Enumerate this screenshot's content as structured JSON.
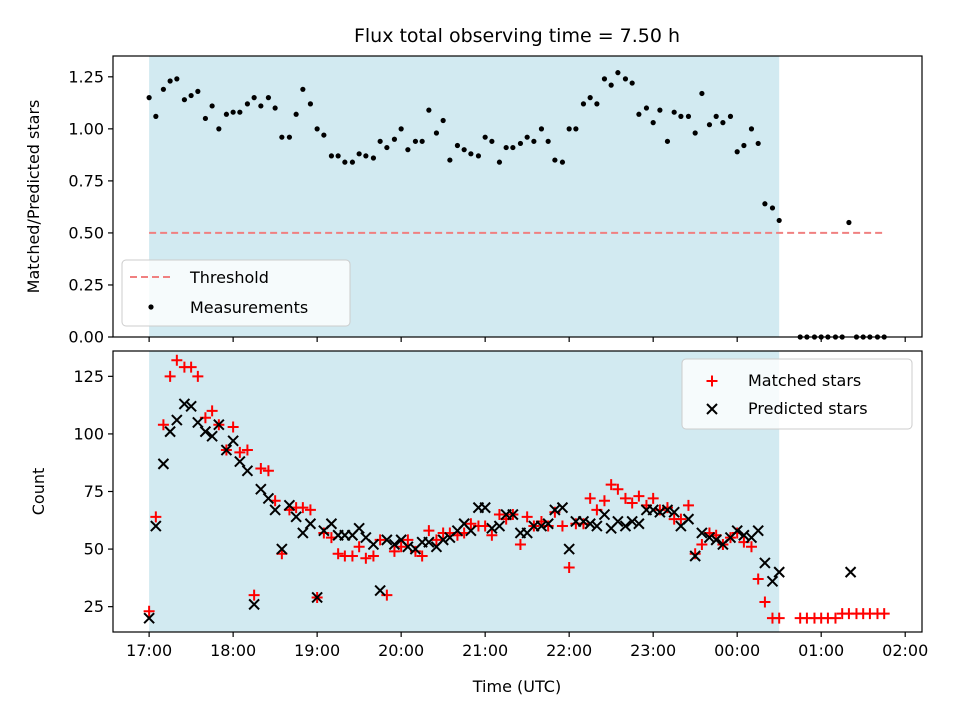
{
  "chart_data": {
    "type": "scatter",
    "title": "Flux total observing time = 7.50 h",
    "xlabel": "Time (UTC)",
    "x_tick_labels": [
      "17:00",
      "18:00",
      "19:00",
      "20:00",
      "21:00",
      "22:00",
      "23:00",
      "00:00",
      "01:00",
      "02:00"
    ],
    "x_unit": "hours since 17:00 UTC",
    "x_ticks": [
      0,
      1,
      2,
      3,
      4,
      5,
      6,
      7,
      8,
      9
    ],
    "xlim": [
      -0.43,
      9.2
    ],
    "observing_window": [
      0,
      7.5
    ],
    "colors": {
      "window": "#add8e6",
      "threshold": "#f08080",
      "measurements": "#000000",
      "matched": "#ff0000",
      "predicted": "#000000"
    },
    "panels": [
      {
        "ylabel": "Matched/Predicted stars",
        "ylim": [
          0,
          1.35
        ],
        "yticks": [
          0,
          0.25,
          0.5,
          0.75,
          1.0,
          1.25
        ],
        "y_tick_labels": [
          "0.00",
          "0.25",
          "0.50",
          "0.75",
          "1.00",
          "1.25"
        ],
        "legend_position": "lower-left",
        "threshold": {
          "name": "Threshold",
          "value": 0.5,
          "x_range": [
            0,
            8.75
          ]
        },
        "series": [
          {
            "name": "Measurements",
            "marker": "dot",
            "x": [
              0,
              0.08,
              0.17,
              0.25,
              0.33,
              0.42,
              0.5,
              0.58,
              0.67,
              0.75,
              0.83,
              0.92,
              1.0,
              1.08,
              1.17,
              1.25,
              1.33,
              1.42,
              1.5,
              1.58,
              1.67,
              1.75,
              1.83,
              1.92,
              2.0,
              2.08,
              2.17,
              2.25,
              2.33,
              2.42,
              2.5,
              2.58,
              2.67,
              2.75,
              2.83,
              2.92,
              3.0,
              3.08,
              3.17,
              3.25,
              3.33,
              3.42,
              3.5,
              3.58,
              3.67,
              3.75,
              3.83,
              3.92,
              4.0,
              4.08,
              4.17,
              4.25,
              4.33,
              4.42,
              4.5,
              4.58,
              4.67,
              4.75,
              4.83,
              4.92,
              5.0,
              5.08,
              5.17,
              5.25,
              5.33,
              5.42,
              5.5,
              5.58,
              5.67,
              5.75,
              5.83,
              5.92,
              6.0,
              6.08,
              6.17,
              6.25,
              6.33,
              6.42,
              6.5,
              6.58,
              6.67,
              6.75,
              6.83,
              6.92,
              7.0,
              7.08,
              7.17,
              7.25,
              7.33,
              7.42,
              7.5,
              7.75,
              7.83,
              7.92,
              8.0,
              8.08,
              8.17,
              8.25,
              8.33,
              8.42,
              8.5,
              8.58,
              8.67,
              8.75
            ],
            "y": [
              1.15,
              1.06,
              1.19,
              1.23,
              1.24,
              1.14,
              1.16,
              1.18,
              1.05,
              1.11,
              1.0,
              1.07,
              1.08,
              1.08,
              1.12,
              1.15,
              1.11,
              1.15,
              1.1,
              0.96,
              0.96,
              1.07,
              1.19,
              1.12,
              1.0,
              0.97,
              0.87,
              0.87,
              0.84,
              0.84,
              0.88,
              0.87,
              0.86,
              0.94,
              0.91,
              0.95,
              1.0,
              0.9,
              0.94,
              0.94,
              1.09,
              0.98,
              1.04,
              0.85,
              0.92,
              0.9,
              0.88,
              0.87,
              0.96,
              0.94,
              0.84,
              0.91,
              0.91,
              0.93,
              0.96,
              0.94,
              1.0,
              0.94,
              0.85,
              0.84,
              1.0,
              1.0,
              1.12,
              1.15,
              1.12,
              1.24,
              1.21,
              1.27,
              1.24,
              1.22,
              1.07,
              1.1,
              1.03,
              1.09,
              0.94,
              1.08,
              1.06,
              1.06,
              0.98,
              1.17,
              1.02,
              1.06,
              1.03,
              1.06,
              0.89,
              0.92,
              1.0,
              0.93,
              0.64,
              0.62,
              0.56,
              0,
              0,
              0,
              0,
              0,
              0,
              0,
              0.55,
              0,
              0,
              0,
              0,
              0
            ]
          }
        ]
      },
      {
        "ylabel": "Count",
        "ylim": [
          14,
          136
        ],
        "yticks": [
          25,
          50,
          75,
          100,
          125
        ],
        "y_tick_labels": [
          "25",
          "50",
          "75",
          "100",
          "125"
        ],
        "legend_position": "top-right",
        "series": [
          {
            "name": "Matched stars",
            "marker": "plus",
            "x": [
              0,
              0.08,
              0.17,
              0.25,
              0.33,
              0.42,
              0.5,
              0.58,
              0.67,
              0.75,
              0.83,
              0.92,
              1.0,
              1.08,
              1.17,
              1.25,
              1.33,
              1.42,
              1.5,
              1.58,
              1.67,
              1.75,
              1.83,
              1.92,
              2.0,
              2.08,
              2.17,
              2.25,
              2.33,
              2.42,
              2.5,
              2.58,
              2.67,
              2.75,
              2.83,
              2.92,
              3.0,
              3.08,
              3.17,
              3.25,
              3.33,
              3.42,
              3.5,
              3.58,
              3.67,
              3.75,
              3.83,
              3.92,
              4.0,
              4.08,
              4.17,
              4.25,
              4.33,
              4.42,
              4.5,
              4.58,
              4.67,
              4.75,
              4.83,
              4.92,
              5.0,
              5.08,
              5.17,
              5.25,
              5.33,
              5.42,
              5.5,
              5.58,
              5.67,
              5.75,
              5.83,
              5.92,
              6.0,
              6.08,
              6.17,
              6.25,
              6.33,
              6.42,
              6.5,
              6.58,
              6.67,
              6.75,
              6.83,
              6.92,
              7.0,
              7.08,
              7.17,
              7.25,
              7.33,
              7.42,
              7.5,
              7.75,
              7.83,
              7.92,
              8.0,
              8.08,
              8.17,
              8.25,
              8.33,
              8.42,
              8.5,
              8.58,
              8.67,
              8.75
            ],
            "y": [
              23,
              64,
              104,
              125,
              132,
              129,
              129,
              125,
              107,
              110,
              104,
              93,
              103,
              92,
              93,
              30,
              85,
              84,
              71,
              48,
              67,
              68,
              68,
              67,
              29,
              57,
              55,
              48,
              47,
              47,
              51,
              46,
              47,
              54,
              30,
              49,
              51,
              54,
              49,
              47,
              58,
              54,
              57,
              57,
              56,
              57,
              61,
              60,
              60,
              56,
              65,
              63,
              65,
              52,
              64,
              60,
              62,
              60,
              66,
              60,
              42,
              61,
              61,
              72,
              67,
              71,
              78,
              76,
              72,
              70,
              73,
              69,
              72,
              67,
              68,
              63,
              63,
              69,
              48,
              52,
              57,
              56,
              52,
              55,
              57,
              53,
              51,
              37,
              27,
              20,
              20,
              20,
              20,
              20,
              20,
              20,
              20,
              22,
              22,
              22,
              22,
              22,
              22,
              22
            ]
          },
          {
            "name": "Predicted stars",
            "marker": "x",
            "x": [
              0,
              0.08,
              0.17,
              0.25,
              0.33,
              0.42,
              0.5,
              0.58,
              0.67,
              0.75,
              0.83,
              0.92,
              1.0,
              1.08,
              1.17,
              1.25,
              1.33,
              1.42,
              1.5,
              1.58,
              1.67,
              1.75,
              1.83,
              1.92,
              2.0,
              2.08,
              2.17,
              2.25,
              2.33,
              2.42,
              2.5,
              2.58,
              2.67,
              2.75,
              2.83,
              2.92,
              3.0,
              3.08,
              3.17,
              3.25,
              3.33,
              3.42,
              3.5,
              3.58,
              3.67,
              3.75,
              3.83,
              3.92,
              4.0,
              4.08,
              4.17,
              4.25,
              4.33,
              4.42,
              4.5,
              4.58,
              4.67,
              4.75,
              4.83,
              4.92,
              5.0,
              5.08,
              5.17,
              5.25,
              5.33,
              5.42,
              5.5,
              5.58,
              5.67,
              5.75,
              5.83,
              5.92,
              6.0,
              6.08,
              6.17,
              6.25,
              6.33,
              6.42,
              6.5,
              6.58,
              6.67,
              6.75,
              6.83,
              6.92,
              7.0,
              7.08,
              7.17,
              7.25,
              7.33,
              7.42,
              7.5,
              8.35
            ],
            "y": [
              20,
              60,
              87,
              101,
              106,
              113,
              112,
              105,
              101,
              99,
              104,
              93,
              97,
              88,
              84,
              26,
              76,
              72,
              67,
              50,
              69,
              64,
              57,
              61,
              29,
              58,
              61,
              56,
              56,
              56,
              59,
              55,
              52,
              32,
              54,
              52,
              54,
              51,
              50,
              53,
              53,
              51,
              54,
              55,
              58,
              61,
              58,
              68,
              68,
              59,
              60,
              65,
              65,
              57,
              57,
              60,
              60,
              61,
              67,
              68,
              50,
              62,
              62,
              61,
              60,
              65,
              59,
              62,
              60,
              62,
              61,
              67,
              67,
              66,
              67,
              66,
              60,
              63,
              47,
              57,
              55,
              54,
              52,
              55,
              58,
              56,
              55,
              58,
              44,
              36,
              40,
              40
            ]
          }
        ]
      }
    ]
  }
}
